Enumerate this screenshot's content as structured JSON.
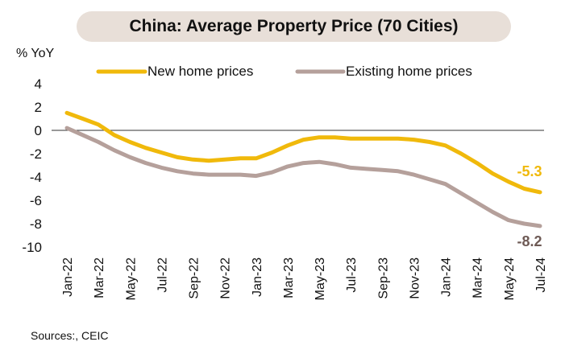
{
  "title": "China: Average Property Price (70 Cities)",
  "source": "Sources:, CEIC",
  "chart_data": {
    "type": "line",
    "title": "China: Average Property Price (70 Cities)",
    "ylabel": "% YoY",
    "xlabel": "",
    "ylim": [
      -10,
      4
    ],
    "yticks": [
      4,
      2,
      0,
      -2,
      -4,
      -6,
      -8,
      -10
    ],
    "x": [
      "Jan-22",
      "Feb-22",
      "Mar-22",
      "Apr-22",
      "May-22",
      "Jun-22",
      "Jul-22",
      "Aug-22",
      "Sep-22",
      "Oct-22",
      "Nov-22",
      "Dec-22",
      "Jan-23",
      "Feb-23",
      "Mar-23",
      "Apr-23",
      "May-23",
      "Jun-23",
      "Jul-23",
      "Aug-23",
      "Sep-23",
      "Oct-23",
      "Nov-23",
      "Dec-23",
      "Jan-24",
      "Feb-24",
      "Mar-24",
      "Apr-24",
      "May-24",
      "Jun-24",
      "Jul-24"
    ],
    "xtick_labels": [
      "Jan-22",
      "Mar-22",
      "May-22",
      "Jul-22",
      "Sep-22",
      "Nov-22",
      "Jan-23",
      "Mar-23",
      "May-23",
      "Jul-23",
      "Sep-23",
      "Nov-23",
      "Jan-24",
      "Mar-24",
      "May-24",
      "Jul-24"
    ],
    "series": [
      {
        "name": "New home prices",
        "color": "#f0b90b",
        "values": [
          1.5,
          1.0,
          0.5,
          -0.4,
          -1.0,
          -1.5,
          -1.9,
          -2.3,
          -2.5,
          -2.6,
          -2.5,
          -2.4,
          -2.4,
          -1.9,
          -1.3,
          -0.8,
          -0.6,
          -0.6,
          -0.7,
          -0.7,
          -0.7,
          -0.7,
          -0.8,
          -1.0,
          -1.3,
          -2.0,
          -2.8,
          -3.7,
          -4.4,
          -5.0,
          -5.3
        ],
        "end_label": "-5.3"
      },
      {
        "name": "Existing home prices",
        "color": "#b5a09b",
        "values": [
          0.2,
          -0.4,
          -1.0,
          -1.7,
          -2.3,
          -2.8,
          -3.2,
          -3.5,
          -3.7,
          -3.8,
          -3.8,
          -3.8,
          -3.9,
          -3.6,
          -3.1,
          -2.8,
          -2.7,
          -2.9,
          -3.2,
          -3.3,
          -3.4,
          -3.5,
          -3.8,
          -4.2,
          -4.6,
          -5.4,
          -6.2,
          -7.0,
          -7.7,
          -8.0,
          -8.2
        ],
        "end_label": "-8.2"
      }
    ],
    "grid": false,
    "legend_position": "top"
  }
}
